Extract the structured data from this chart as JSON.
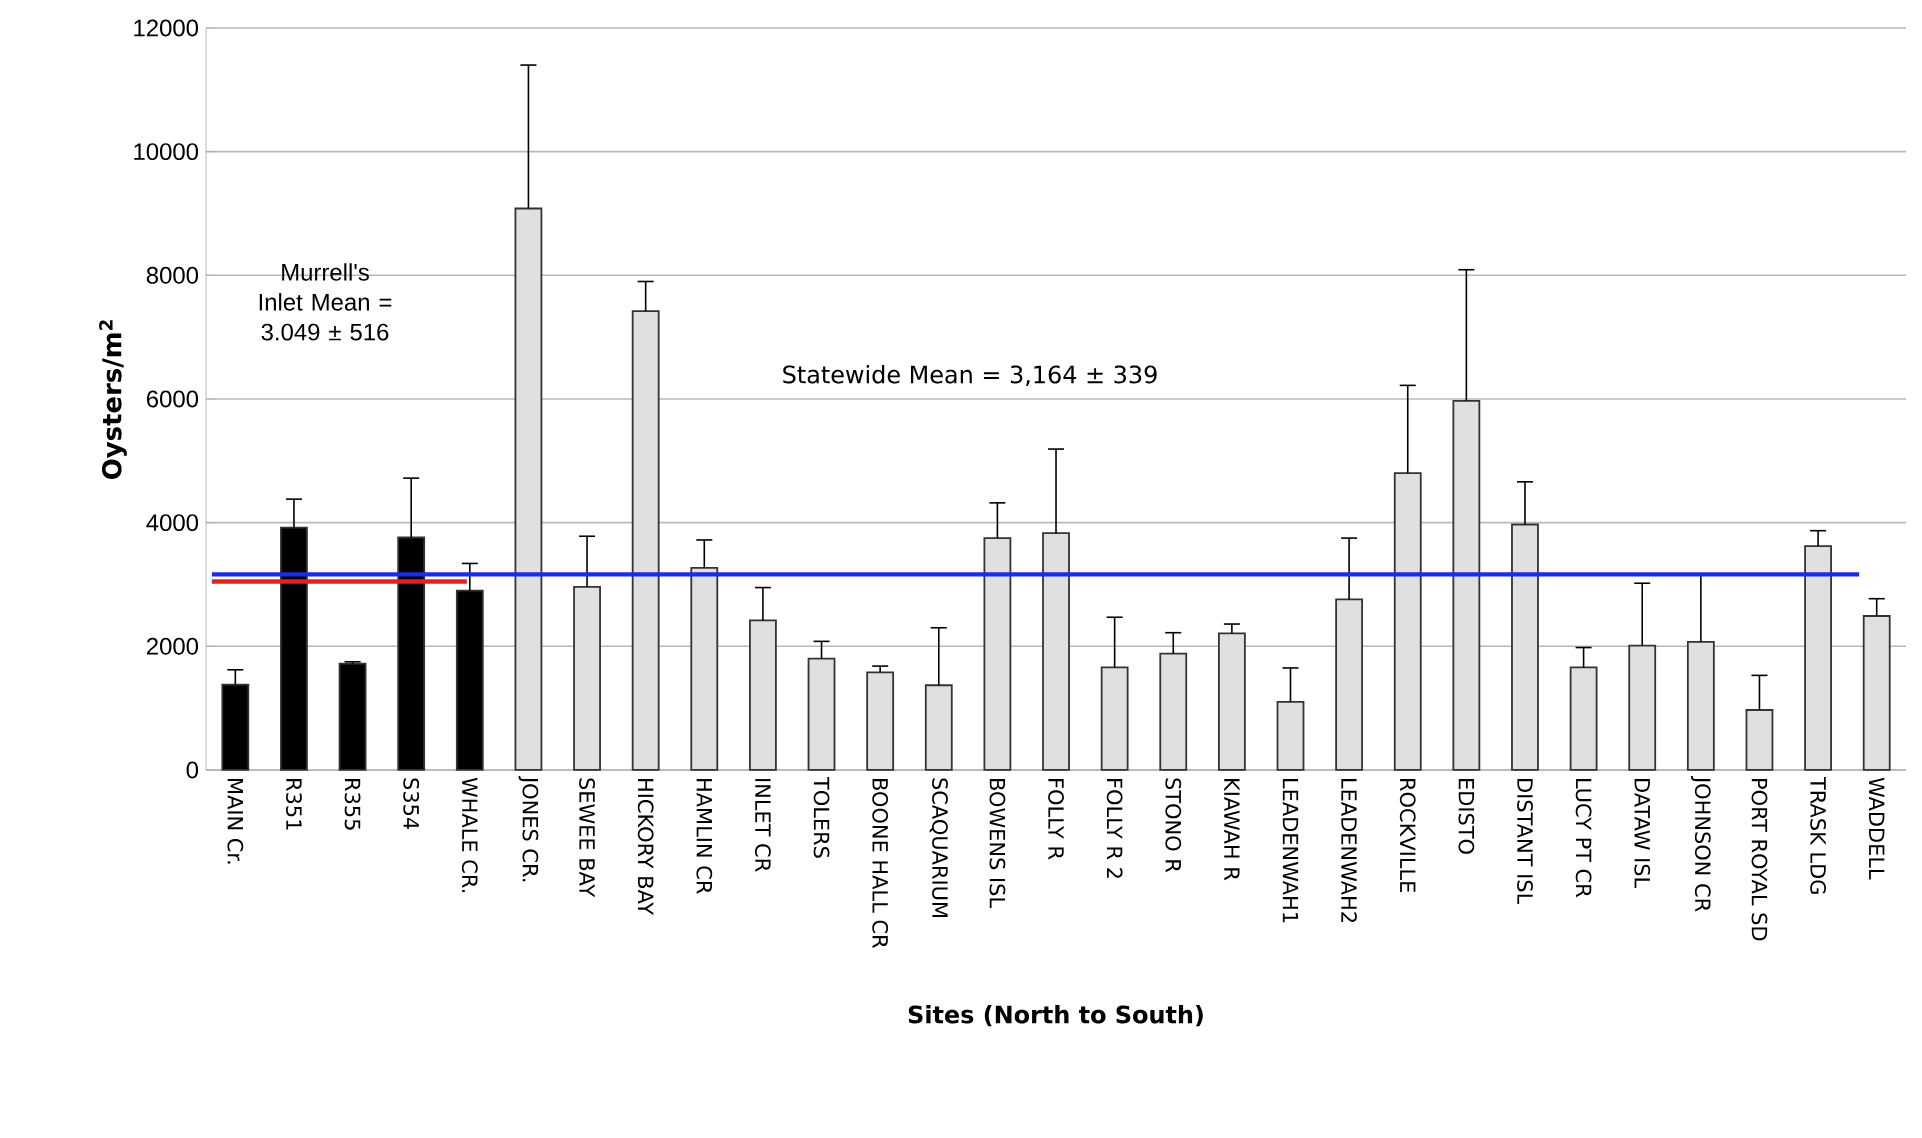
{
  "chart_data": {
    "type": "bar",
    "xlabel": "Sites (North to South)",
    "ylabel": "Oysters/m$^{2}$",
    "categories": [
      "MAIN Cr.",
      "R351",
      "R355",
      "S354",
      "WHALE CR.",
      "JONES CR.",
      "SEWEE BAY",
      "HICKORY BAY",
      "HAMLIN CR",
      "INLET CR",
      "TOLERS",
      "BOONE HALL CR",
      "SCAQUARIUM",
      "BOWENS ISL",
      "FOLLY R",
      "FOLLY R 2",
      "STONO R",
      "KIAWAH R",
      "LEADENWAH1",
      "LEADENWAH2",
      "ROCKVILLE",
      "EDISTO",
      "DISTANT ISL",
      "LUCY PT CR",
      "DATAW ISL",
      "JOHNSON CR",
      "PORT ROYAL SD",
      "TRASK LDG",
      "WADDELL"
    ],
    "values": [
      1380,
      3920,
      1720,
      3760,
      2900,
      9080,
      2960,
      7420,
      3270,
      2420,
      1800,
      1580,
      1370,
      3750,
      3830,
      1660,
      1880,
      2210,
      1100,
      2760,
      4800,
      5970,
      3970,
      1660,
      2010,
      2070,
      970,
      3620,
      2490
    ],
    "errors": [
      240,
      460,
      30,
      960,
      440,
      2320,
      820,
      480,
      450,
      530,
      280,
      100,
      930,
      570,
      1360,
      810,
      340,
      150,
      550,
      990,
      1420,
      2120,
      690,
      320,
      1010,
      1100,
      560,
      250,
      280
    ],
    "colors": [
      "#000000",
      "#000000",
      "#000000",
      "#000000",
      "#000000",
      "#e0e0e0",
      "#e0e0e0",
      "#e0e0e0",
      "#e0e0e0",
      "#e0e0e0",
      "#e0e0e0",
      "#e0e0e0",
      "#e0e0e0",
      "#e0e0e0",
      "#e0e0e0",
      "#e0e0e0",
      "#e0e0e0",
      "#e0e0e0",
      "#e0e0e0",
      "#e0e0e0",
      "#e0e0e0",
      "#e0e0e0",
      "#e0e0e0",
      "#e0e0e0",
      "#e0e0e0",
      "#e0e0e0",
      "#e0e0e0",
      "#e0e0e0",
      "#e0e0e0"
    ],
    "ref_lines": [
      {
        "axis": "y",
        "value": 3164,
        "color": "#1a2ee0"
      },
      {
        "axis": "y",
        "value": 3049,
        "color": "#e8201a"
      }
    ],
    "annotations": [
      "Statewide Mean = 3,164 ± 339",
      "Murrell's Inlet Mean = 3.049 ± 516"
    ],
    "ylim": [
      0,
      12000
    ],
    "yticks": [
      0,
      2000,
      4000,
      6000,
      8000,
      10000,
      12000
    ],
    "grid": "y"
  }
}
